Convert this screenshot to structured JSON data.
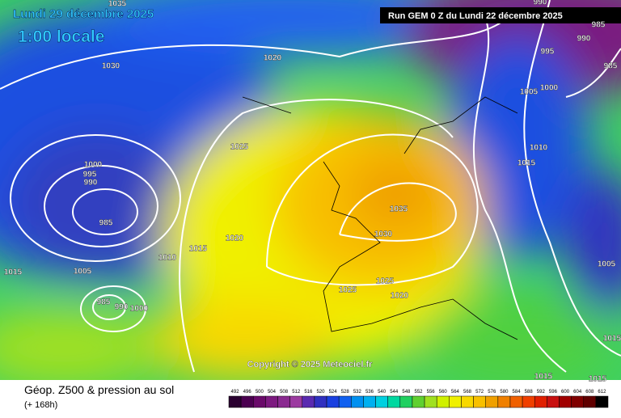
{
  "header": {
    "date": "Lundi 29 décembre 2025",
    "time": "1:00 locale",
    "run": "Run GEM 0 Z du Lundi 22 décembre 2025"
  },
  "isobar_labels": [
    "1035",
    "1030",
    "1020",
    "1025",
    "1000",
    "995",
    "990",
    "985",
    "1015",
    "1020",
    "1010",
    "1005",
    "1015",
    "985",
    "990",
    "1000",
    "1035",
    "1030",
    "1025",
    "1025",
    "1020",
    "990",
    "985",
    "990",
    "995",
    "985",
    "1000",
    "1005",
    "1010",
    "1015",
    "1005",
    "1015",
    "1015",
    "1015"
  ],
  "copyright": "Copyright © 2025 Meteociel.fr",
  "footer": {
    "title": "Géop. Z500 & pression au sol",
    "lead": "(+ 168h)"
  },
  "scale": {
    "labels": [
      492,
      496,
      500,
      504,
      508,
      512,
      516,
      520,
      524,
      528,
      532,
      536,
      540,
      544,
      548,
      552,
      556,
      560,
      564,
      568,
      572,
      576,
      580,
      584,
      588,
      592,
      596,
      600,
      604,
      608,
      612
    ],
    "colors": [
      "#2a0030",
      "#4b0050",
      "#6a0a6a",
      "#7d1a80",
      "#8a2a90",
      "#9c3aa0",
      "#5a2ab0",
      "#3030c0",
      "#1a40e0",
      "#1060f0",
      "#0090f0",
      "#00b0f0",
      "#00d0e0",
      "#00d8a0",
      "#20d060",
      "#60d030",
      "#a0e020",
      "#d0f000",
      "#f0f000",
      "#f8d800",
      "#f8c000",
      "#f0a000",
      "#f08000",
      "#f06000",
      "#f04000",
      "#e02000",
      "#c81010",
      "#a00000",
      "#800000",
      "#600000",
      "#000000"
    ]
  }
}
